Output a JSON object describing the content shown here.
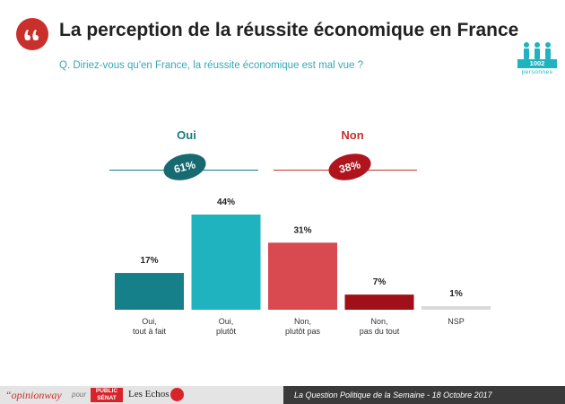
{
  "header": {
    "title": "La perception de la réussite économique en France",
    "question": "Q. Diriez-vous qu'en France, la réussite économique est mal vue ?",
    "quote_icon": "quote-icon"
  },
  "respondents": {
    "count": "1002",
    "unit": "personnes",
    "icon": "people-icon"
  },
  "summary": {
    "oui": {
      "label": "Oui",
      "value": "61%",
      "color": "#1a7a82"
    },
    "non": {
      "label": "Non",
      "value": "38%",
      "color": "#c9302c"
    }
  },
  "chart_data": {
    "type": "bar",
    "categories": [
      [
        "Oui,",
        "tout à fait"
      ],
      [
        "Oui,",
        "plutôt"
      ],
      [
        "Non,",
        "plutôt pas"
      ],
      [
        "Non,",
        "pas du tout"
      ],
      [
        "NSP"
      ]
    ],
    "values": [
      17,
      44,
      31,
      7,
      1
    ],
    "value_labels": [
      "17%",
      "44%",
      "31%",
      "7%",
      "1%"
    ],
    "colors": [
      "#15808a",
      "#1fb3bf",
      "#d84a4f",
      "#a01018",
      "#d9d9d9"
    ],
    "ylim": [
      0,
      44
    ],
    "grid": false
  },
  "footer": {
    "brand": "“opinionway",
    "pour": "pour",
    "partner1": "PUBLIC SÉNAT",
    "partner2": "Les Echos",
    "caption": "La Question Politique de la Semaine - 18 Octobre 2017"
  }
}
